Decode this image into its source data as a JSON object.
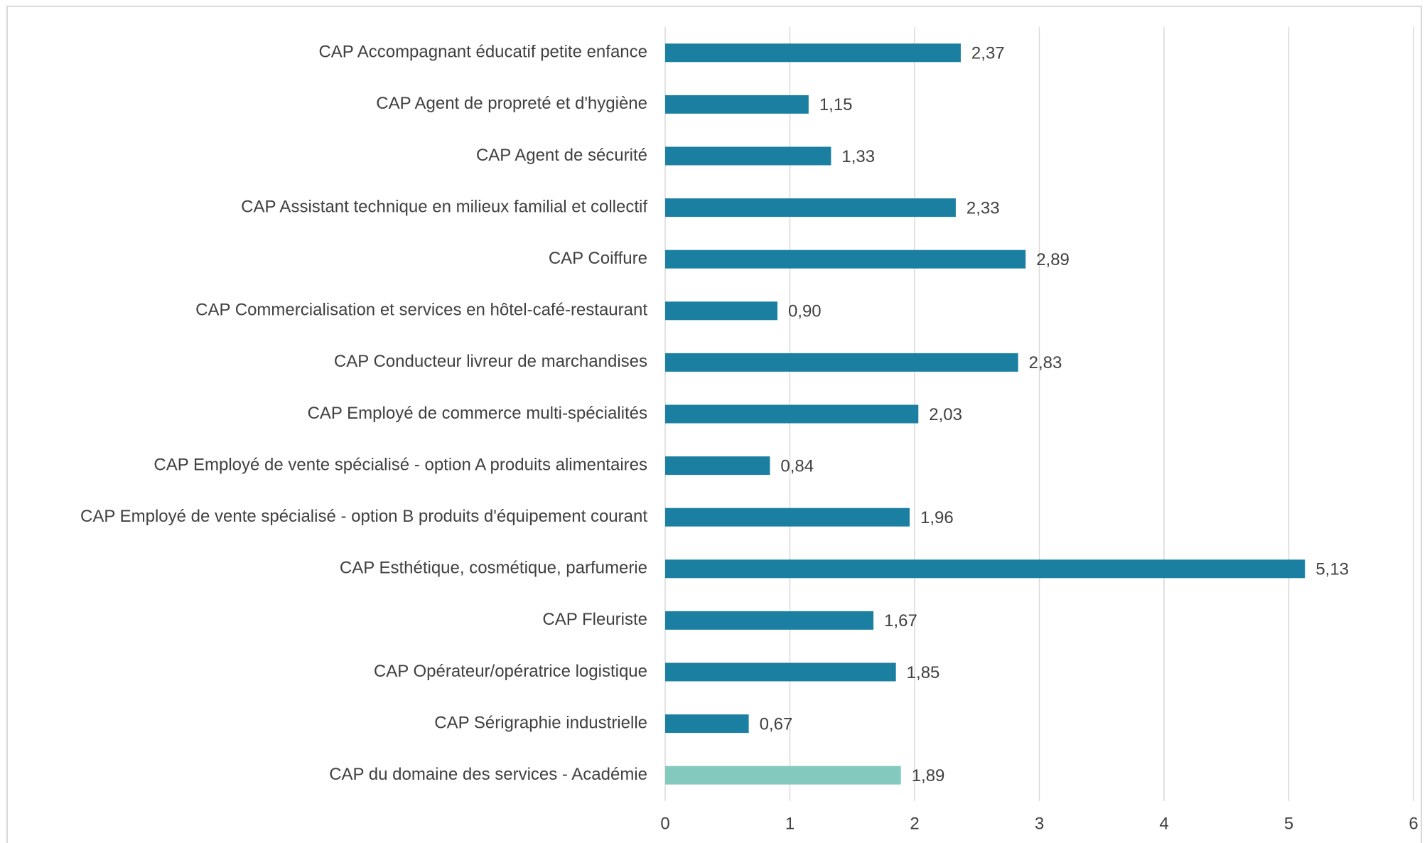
{
  "chart_data": {
    "type": "bar",
    "orientation": "horizontal",
    "categories": [
      "CAP Accompagnant éducatif petite enfance",
      "CAP Agent de propreté et d'hygiène",
      "CAP Agent de sécurité",
      "CAP Assistant technique en milieux familial et collectif",
      "CAP Coiffure",
      "CAP Commercialisation et services en hôtel-café-restaurant",
      "CAP Conducteur livreur de marchandises",
      "CAP Employé de commerce multi-spécialités",
      "CAP Employé de vente spécialisé - option A produits alimentaires",
      "CAP Employé de vente spécialisé - option B produits d'équipement courant",
      "CAP Esthétique, cosmétique, parfumerie",
      "CAP Fleuriste",
      "CAP Opérateur/opératrice logistique",
      "CAP Sérigraphie industrielle",
      "CAP du domaine des services - Académie"
    ],
    "values": [
      2.37,
      1.15,
      1.33,
      2.33,
      2.89,
      0.9,
      2.83,
      2.03,
      0.84,
      1.96,
      5.13,
      1.67,
      1.85,
      0.67,
      1.89
    ],
    "value_labels": [
      "2,37",
      "1,15",
      "1,33",
      "2,33",
      "2,89",
      "0,90",
      "2,83",
      "2,03",
      "0,84",
      "1,96",
      "5,13",
      "1,67",
      "1,85",
      "0,67",
      "1,89"
    ],
    "colors": [
      "#1a7fa0",
      "#1a7fa0",
      "#1a7fa0",
      "#1a7fa0",
      "#1a7fa0",
      "#1a7fa0",
      "#1a7fa0",
      "#1a7fa0",
      "#1a7fa0",
      "#1a7fa0",
      "#1a7fa0",
      "#1a7fa0",
      "#1a7fa0",
      "#1a7fa0",
      "#84c9be"
    ],
    "xlim": [
      0,
      6
    ],
    "xticks": [
      0,
      1,
      2,
      3,
      4,
      5,
      6
    ],
    "grid": true
  }
}
